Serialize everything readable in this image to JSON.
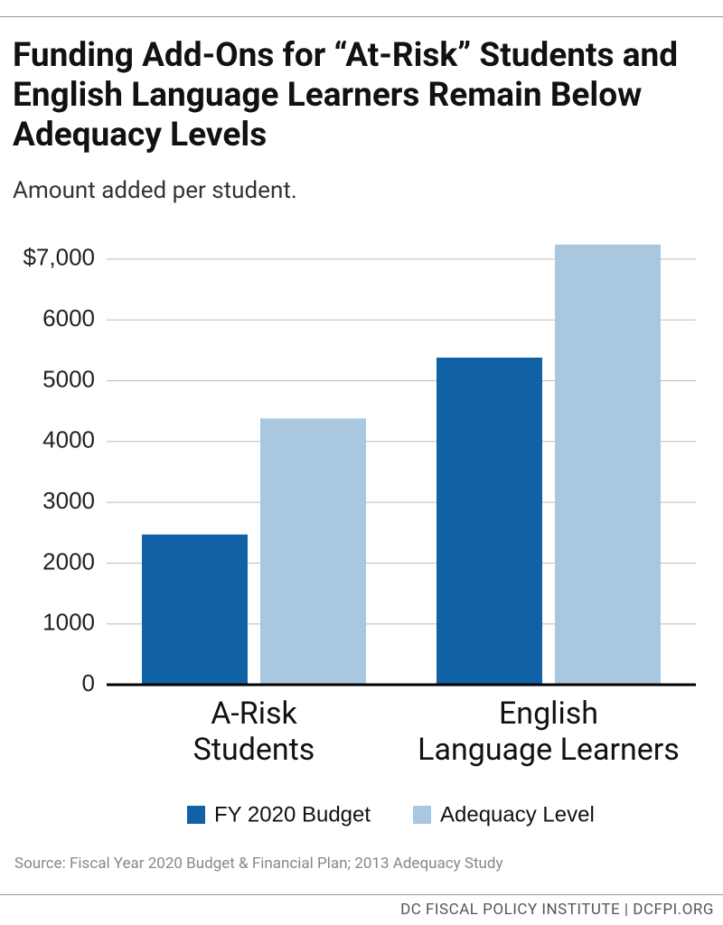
{
  "chart_data": {
    "type": "bar",
    "title": "Funding Add-Ons for “At-Risk” Students and English Language Learners Remain Below Adequacy Levels",
    "subtitle": "Amount added per student.",
    "categories": [
      "A-Risk\nStudents",
      "English\nLanguage Learners"
    ],
    "series": [
      {
        "name": "FY 2020 Budget",
        "color": "#1061a6",
        "values": [
          2470,
          5380
        ]
      },
      {
        "name": "Adequacy Level",
        "color": "#a9c8e0",
        "values": [
          4380,
          7240
        ]
      }
    ],
    "ylim": [
      0,
      7250
    ],
    "yticks": [
      0,
      1000,
      2000,
      3000,
      4000,
      5000,
      6000,
      {
        "value": 7000,
        "label": "$7,000"
      }
    ],
    "grid": true,
    "source": "Source: Fiscal Year 2020 Budget & Financial Plan; 2013 Adequacy Study",
    "footer": "DC FISCAL POLICY INSTITUTE | DCFPI.ORG"
  }
}
